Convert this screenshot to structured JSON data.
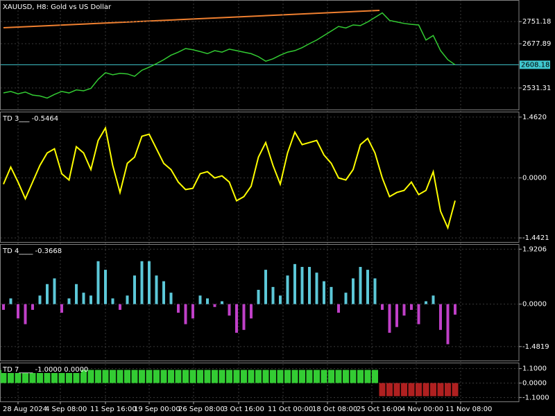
{
  "chart_data": [
    {
      "type": "line",
      "title": "XAUUSD, H8:  Gold vs US Dollar",
      "color": "#33cc33",
      "trendline_color": "#f08030",
      "current_price_color": "#40c8d0",
      "values": [
        2515,
        2520,
        2512,
        2518,
        2508,
        2505,
        2498,
        2510,
        2520,
        2515,
        2525,
        2522,
        2530,
        2560,
        2582,
        2575,
        2580,
        2578,
        2570,
        2590,
        2600,
        2612,
        2625,
        2640,
        2650,
        2662,
        2658,
        2652,
        2645,
        2655,
        2650,
        2660,
        2655,
        2650,
        2645,
        2635,
        2620,
        2628,
        2640,
        2650,
        2655,
        2665,
        2678,
        2690,
        2705,
        2720,
        2735,
        2730,
        2740,
        2738,
        2750,
        2765,
        2780,
        2755,
        2750,
        2745,
        2742,
        2740,
        2690,
        2705,
        2655,
        2625,
        2608.18
      ],
      "ylim": [
        2460,
        2818
      ],
      "yticks": [
        2531.31,
        2677.89,
        2751.18
      ],
      "current_price": 2608.18,
      "grid": true
    },
    {
      "type": "line",
      "title": "TD 3___ -0.5464",
      "color": "#ffff00",
      "values": [
        -0.15,
        0.26,
        -0.1,
        -0.5,
        -0.1,
        0.3,
        0.6,
        0.7,
        0.1,
        -0.05,
        0.75,
        0.6,
        0.2,
        0.9,
        1.2,
        0.3,
        -0.35,
        0.35,
        0.5,
        1.0,
        1.05,
        0.7,
        0.35,
        0.2,
        -0.1,
        -0.28,
        -0.25,
        0.1,
        0.15,
        0.0,
        0.05,
        -0.1,
        -0.55,
        -0.45,
        -0.2,
        0.5,
        0.85,
        0.3,
        -0.15,
        0.6,
        1.1,
        0.8,
        0.85,
        0.9,
        0.55,
        0.35,
        0.0,
        -0.05,
        0.2,
        0.8,
        0.95,
        0.6,
        0.0,
        -0.45,
        -0.35,
        -0.3,
        -0.1,
        -0.4,
        -0.3,
        0.15,
        -0.8,
        -1.2,
        -0.5464
      ],
      "ylim": [
        -1.54,
        1.56
      ],
      "yticks": [
        {
          "value": 1.462,
          "label": "1.4620"
        },
        {
          "value": 0,
          "label": "0.0000"
        },
        {
          "value": -1.4421,
          "label": "-1.4421"
        }
      ],
      "grid": true
    },
    {
      "type": "bar",
      "title": "TD 4____ -0.3668",
      "color_positive": "#5cc8d8",
      "color_negative": "#c040c8",
      "values": [
        -0.2,
        0.2,
        -0.5,
        -0.7,
        -0.2,
        0.3,
        0.7,
        0.9,
        -0.3,
        0.2,
        0.7,
        0.4,
        0.3,
        1.5,
        1.2,
        0.2,
        -0.2,
        0.3,
        1.0,
        1.5,
        1.5,
        1.0,
        0.8,
        0.4,
        -0.3,
        -0.7,
        -0.5,
        0.3,
        0.2,
        -0.1,
        0.1,
        -0.4,
        -1.0,
        -0.9,
        -0.5,
        0.5,
        1.2,
        0.6,
        0.3,
        1.0,
        1.4,
        1.3,
        1.3,
        1.1,
        0.8,
        0.6,
        -0.3,
        0.4,
        0.9,
        1.3,
        1.2,
        0.9,
        -0.2,
        -1.0,
        -0.8,
        -0.4,
        -0.2,
        -0.7,
        0.1,
        0.3,
        -0.9,
        -1.4,
        -0.3668
      ],
      "ylim": [
        -1.97,
        2.05
      ],
      "yticks": [
        {
          "value": 1.9206,
          "label": "1.9206"
        },
        {
          "value": 0,
          "label": "0.0000"
        },
        {
          "value": -1.4819,
          "label": "-1.4819"
        }
      ],
      "grid": true
    },
    {
      "type": "bar",
      "title": "TD 7____ -1.0000 0.0000",
      "color_positive": "#33cc33",
      "color_negative": "#b02020",
      "values": [
        1,
        1,
        1,
        1,
        1,
        1,
        1,
        1,
        1,
        1,
        1,
        1,
        1,
        1,
        1,
        1,
        1,
        1,
        1,
        1,
        1,
        1,
        1,
        1,
        1,
        1,
        1,
        1,
        1,
        1,
        1,
        1,
        1,
        1,
        1,
        1,
        1,
        1,
        1,
        1,
        1,
        1,
        1,
        1,
        1,
        1,
        1,
        1,
        1,
        1,
        1,
        1,
        -1,
        -1,
        -1,
        -1,
        -1,
        -1,
        -1,
        -1,
        -1,
        -1,
        -1
      ],
      "ylim": [
        -1.4,
        1.45
      ],
      "yticks": [
        {
          "value": 1.1,
          "label": "1.1000"
        },
        {
          "value": 0,
          "label": "0.0000"
        },
        {
          "value": -1.1,
          "label": "-1.1000"
        }
      ],
      "grid": true,
      "xtick_labels": [
        "28 Aug 2024",
        "4 Sep 08:00",
        "11 Sep 16:00",
        "19 Sep 00:00",
        "26 Sep 08:00",
        "3 Oct 16:00",
        "11 Oct 00:00",
        "18 Oct 08:00",
        "25 Oct 16:00",
        "4 Nov 00:00",
        "11 Nov 08:00"
      ]
    }
  ]
}
